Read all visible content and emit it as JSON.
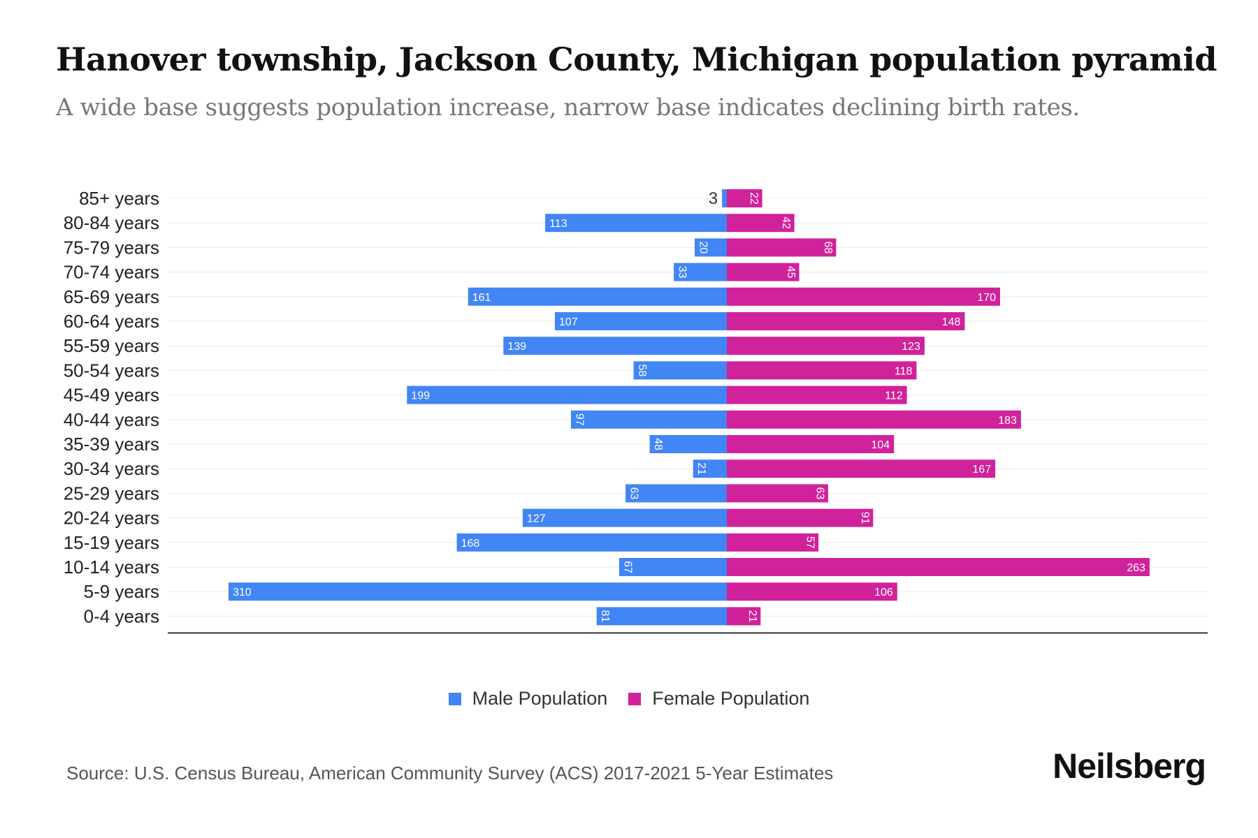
{
  "title": "Hanover township, Jackson County, Michigan population pyramid",
  "subtitle": "A wide base suggests population increase, narrow base indicates declining birth rates.",
  "source": "Source: U.S. Census Bureau, American Community Survey (ACS) 2017-2021 5-Year Estimates",
  "brand": "Neilsberg",
  "colors": {
    "male": "#4285f4",
    "female": "#d0229a",
    "axis": "#333333",
    "grid": "#e8e8e8"
  },
  "legend": {
    "male_label": "Male Population",
    "female_label": "Female Population"
  },
  "chart_data": {
    "type": "bar",
    "orientation": "horizontal-diverging",
    "title": "Hanover township, Jackson County, Michigan population pyramid",
    "categories": [
      "85+ years",
      "80-84 years",
      "75-79 years",
      "70-74 years",
      "65-69 years",
      "60-64 years",
      "55-59 years",
      "50-54 years",
      "45-49 years",
      "40-44 years",
      "35-39 years",
      "30-34 years",
      "25-29 years",
      "20-24 years",
      "15-19 years",
      "10-14 years",
      "5-9 years",
      "0-4 years"
    ],
    "series": [
      {
        "name": "Male Population",
        "values": [
          3,
          113,
          20,
          33,
          161,
          107,
          139,
          58,
          199,
          97,
          48,
          21,
          63,
          127,
          168,
          67,
          310,
          81
        ]
      },
      {
        "name": "Female Population",
        "values": [
          22,
          42,
          68,
          45,
          170,
          148,
          123,
          118,
          112,
          183,
          104,
          167,
          63,
          91,
          57,
          263,
          106,
          21
        ]
      }
    ],
    "xlim": [
      -340,
      300
    ],
    "legend_position": "bottom-center"
  }
}
